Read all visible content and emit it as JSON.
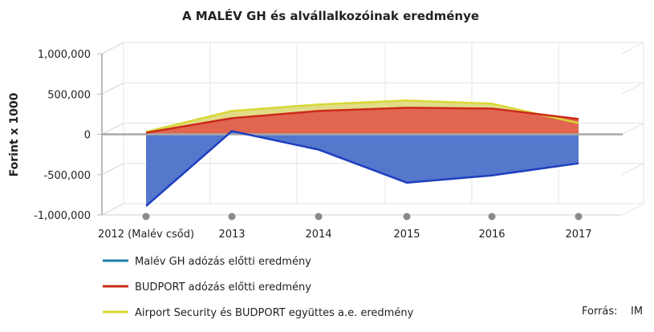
{
  "chart_data": {
    "type": "area",
    "title": "A MALÉV GH és alvállalkozóinak eredménye",
    "ylabel": "Forint x 1000",
    "categories": [
      "2012 (Malév csőd)",
      "2013",
      "2014",
      "2015",
      "2016",
      "2017"
    ],
    "ylim": [
      -1000000,
      1000000
    ],
    "yticks": [
      -1000000,
      -500000,
      0,
      500000,
      1000000
    ],
    "ytick_labels": [
      "-1,000,000",
      "-500,000",
      "0",
      "500,000",
      "1,000,000"
    ],
    "grid": true,
    "legend_position": "bottom-left",
    "series": [
      {
        "name": "Malév GH adózás előtti eredmény",
        "values": [
          -890000,
          40000,
          -190000,
          -600000,
          -510000,
          -360000
        ],
        "color": "#1f3fbf",
        "fill": "#5577cc",
        "legend_color": "#1a7fa8"
      },
      {
        "name": "BUDPORT adózás előtti eredmény",
        "values": [
          20000,
          200000,
          290000,
          330000,
          320000,
          190000
        ],
        "color": "#cc2a1a",
        "fill": "#e06650",
        "legend_color": "#cc2a1a"
      },
      {
        "name": "Airport Security és BUDPORT együttes a.e. eredmény",
        "values": [
          30000,
          290000,
          370000,
          420000,
          380000,
          140000
        ],
        "color": "#d8d834",
        "fill": "#e1dc87",
        "legend_color": "#d8d834"
      }
    ]
  },
  "source": {
    "label": "Forrás:",
    "value": "IM"
  }
}
